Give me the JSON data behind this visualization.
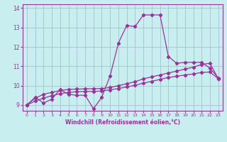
{
  "xlabel": "Windchill (Refroidissement éolien,°C)",
  "xlim": [
    -0.5,
    23.5
  ],
  "ylim": [
    8.7,
    14.2
  ],
  "xticks": [
    0,
    1,
    2,
    3,
    4,
    5,
    6,
    7,
    8,
    9,
    10,
    11,
    12,
    13,
    14,
    15,
    16,
    17,
    18,
    19,
    20,
    21,
    22,
    23
  ],
  "yticks": [
    9,
    10,
    11,
    12,
    13,
    14
  ],
  "background_color": "#c8eef0",
  "grid_color": "#a0b8cc",
  "line_color": "#993399",
  "line1_x": [
    0,
    1,
    2,
    3,
    4,
    5,
    6,
    7,
    8,
    9,
    10,
    11,
    12,
    13,
    14,
    15,
    16,
    17,
    18,
    19,
    20,
    21,
    22,
    23
  ],
  "line1_y": [
    9.0,
    9.4,
    9.1,
    9.3,
    9.8,
    9.55,
    9.5,
    9.5,
    8.8,
    9.4,
    10.5,
    12.2,
    13.1,
    13.05,
    13.65,
    13.65,
    13.65,
    11.5,
    11.15,
    11.2,
    11.2,
    11.2,
    10.9,
    10.4
  ],
  "line2_x": [
    0,
    1,
    2,
    3,
    4,
    5,
    6,
    7,
    8,
    9,
    10,
    11,
    12,
    13,
    14,
    15,
    16,
    17,
    18,
    19,
    20,
    21,
    22,
    23
  ],
  "line2_y": [
    9.0,
    9.35,
    9.55,
    9.65,
    9.75,
    9.8,
    9.82,
    9.83,
    9.84,
    9.85,
    9.9,
    10.0,
    10.1,
    10.2,
    10.35,
    10.45,
    10.55,
    10.65,
    10.75,
    10.85,
    10.95,
    11.1,
    11.15,
    10.35
  ],
  "line3_x": [
    0,
    1,
    2,
    3,
    4,
    5,
    6,
    7,
    8,
    9,
    10,
    11,
    12,
    13,
    14,
    15,
    16,
    17,
    18,
    19,
    20,
    21,
    22,
    23
  ],
  "line3_y": [
    9.0,
    9.2,
    9.35,
    9.48,
    9.58,
    9.65,
    9.68,
    9.7,
    9.7,
    9.72,
    9.78,
    9.85,
    9.93,
    10.02,
    10.13,
    10.22,
    10.32,
    10.42,
    10.48,
    10.55,
    10.6,
    10.68,
    10.7,
    10.35
  ]
}
